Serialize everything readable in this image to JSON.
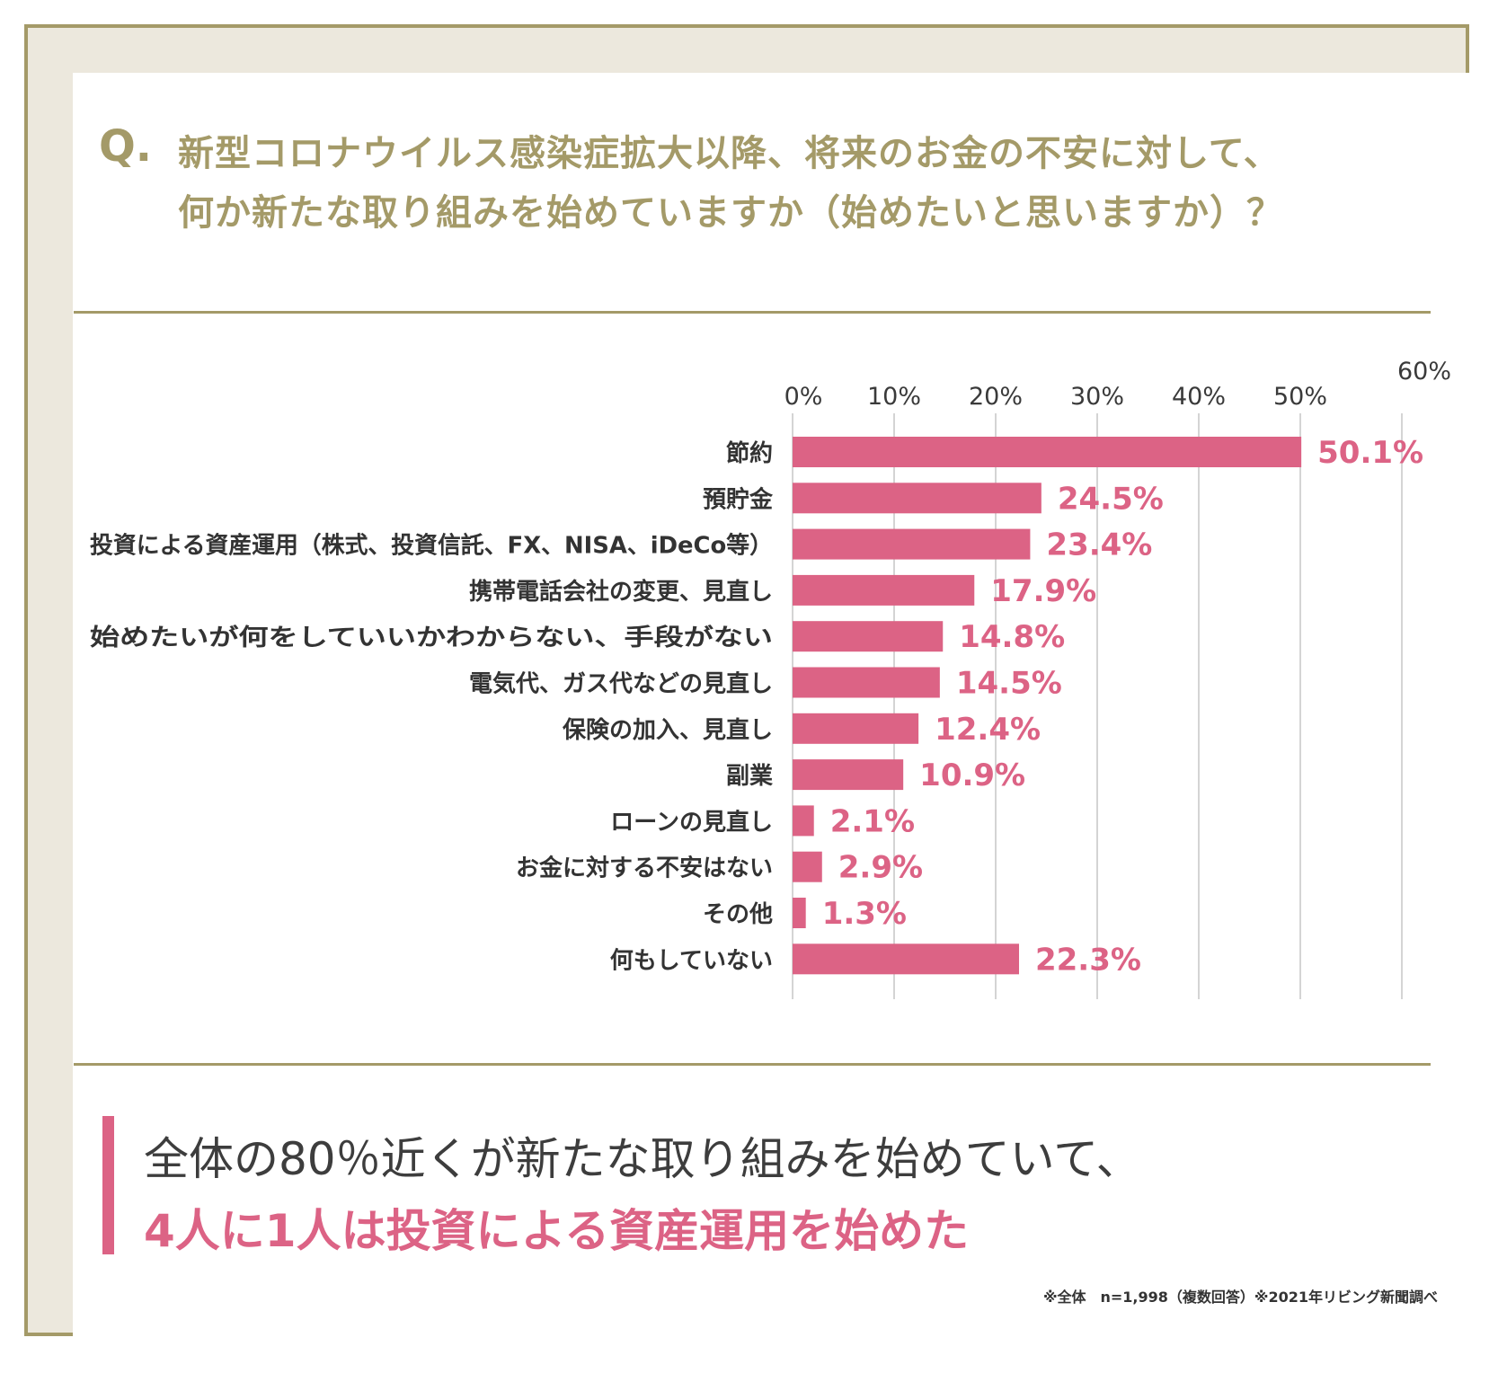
{
  "question": {
    "mark": "Q.",
    "line1": "新型コロナウイルス感染症拡大以降、将来のお金の不安に対して、",
    "line2": "何か新たな取り組みを始めていますか（始めたいと思いますか）？"
  },
  "conclusion": {
    "line1": "全体の80％近くが新たな取り組みを始めていて、",
    "line2": "4人に1人は投資による資産運用を始めた"
  },
  "footnote": "※全体　n=1,998（複数回答）※2021年リビング新聞調べ",
  "colors": {
    "bar": "#dc6385",
    "accent_gold": "#a49a68",
    "grid": "#d4d4d4"
  },
  "chart_data": {
    "type": "bar",
    "orientation": "horizontal",
    "xlim": [
      0,
      60
    ],
    "ticks": [
      "0%",
      "10%",
      "20%",
      "30%",
      "40%",
      "50%",
      "60%"
    ],
    "tick_values": [
      0,
      10,
      20,
      30,
      40,
      50,
      60
    ],
    "grid": true,
    "categories": [
      "節約",
      "預貯金",
      "投資による資産運用（株式、投資信託、FX、NISA、iDeCo等）",
      "携帯電話会社の変更、見直し",
      "始めたいが何をしていいかわからない、手段がない",
      "電気代、ガス代などの見直し",
      "保険の加入、見直し",
      "副業",
      "ローンの見直し",
      "お金に対する不安はない",
      "その他",
      "何もしていない"
    ],
    "values": [
      50.1,
      24.5,
      23.4,
      17.9,
      14.8,
      14.5,
      12.4,
      10.9,
      2.1,
      2.9,
      1.3,
      22.3
    ],
    "labels": [
      "50.1%",
      "24.5%",
      "23.4%",
      "17.9%",
      "14.8%",
      "14.5%",
      "12.4%",
      "10.9%",
      "2.1%",
      "2.9%",
      "1.3%",
      "22.3%"
    ]
  }
}
